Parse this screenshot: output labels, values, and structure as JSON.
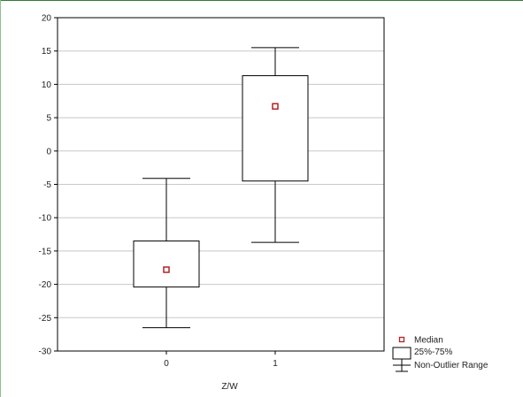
{
  "chart_data": {
    "type": "box",
    "title": "",
    "xlabel": "Z/W",
    "ylabel": "",
    "ylim": [
      -30,
      20
    ],
    "yticks": [
      "20",
      "15",
      "10",
      "5",
      "0",
      "-5",
      "-10",
      "-15",
      "-20",
      "-25",
      "-30"
    ],
    "grid": "horizontal",
    "xlim": [
      -1,
      2
    ],
    "categories": [
      "0",
      "1"
    ],
    "boxes": [
      {
        "category": "0",
        "whisker_low": -26.5,
        "q1": -20.4,
        "median": -17.8,
        "q3": -13.5,
        "whisker_high": -4.1
      },
      {
        "category": "1",
        "whisker_low": -13.7,
        "q1": -4.5,
        "median": 6.7,
        "q3": 11.3,
        "whisker_high": 15.5
      }
    ],
    "legend": {
      "placement": "bottom-right",
      "items": [
        {
          "symbol": "median-marker",
          "label": "Median"
        },
        {
          "symbol": "box",
          "label": "25%-75%"
        },
        {
          "symbol": "whisker",
          "label": "Non-Outlier Range"
        }
      ]
    },
    "colors": {
      "median_marker": "#b22222",
      "box": "#000000",
      "grid": "#c8c8c8"
    }
  }
}
